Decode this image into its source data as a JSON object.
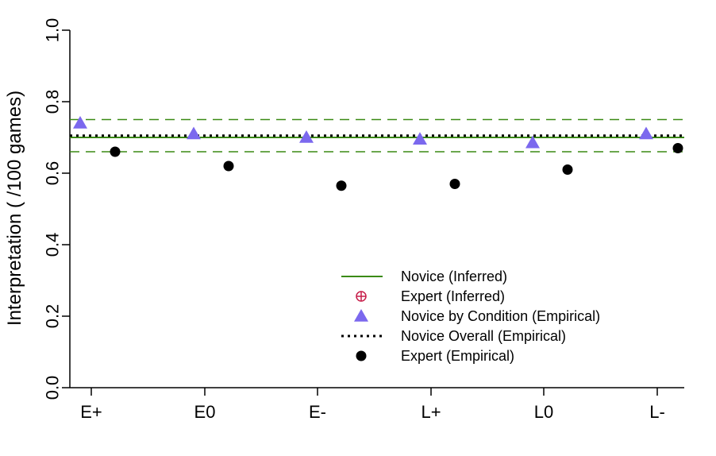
{
  "chart_data": {
    "type": "scatter",
    "ylabel": "Interpretation ( /100 games)",
    "categories": [
      "E+",
      "E0",
      "E-",
      "L+",
      "L0",
      "L-"
    ],
    "ylim": [
      0,
      1
    ],
    "yticks": [
      "0.0",
      "0.2",
      "0.4",
      "0.6",
      "0.8",
      "1.0"
    ],
    "series": [
      {
        "name": "Novice by Condition (Empirical)",
        "kind": "triangle",
        "color": "#7b68ee",
        "values": [
          0.74,
          0.71,
          0.7,
          0.695,
          0.685,
          0.71
        ]
      },
      {
        "name": "Expert (Empirical)",
        "kind": "circle",
        "color": "#000000",
        "values": [
          0.66,
          0.62,
          0.565,
          0.57,
          0.61,
          0.67
        ]
      }
    ],
    "reference_lines": {
      "novice_inferred": {
        "value": 0.7,
        "lower": 0.66,
        "upper": 0.75,
        "color": "#3a8a14"
      },
      "novice_overall": {
        "value": 0.705,
        "color": "#000000"
      }
    },
    "legend": {
      "placement": "bottom-center",
      "entries": [
        {
          "label": "Novice (Inferred)",
          "symbol": "line",
          "color": "#3a8a14"
        },
        {
          "label": "Expert (Inferred)",
          "symbol": "crossed-circle",
          "color": "#c71e4a"
        },
        {
          "label": "Novice by Condition (Empirical)",
          "symbol": "triangle",
          "color": "#7b68ee"
        },
        {
          "label": "Novice Overall (Empirical)",
          "symbol": "dotted-line",
          "color": "#000000"
        },
        {
          "label": "Expert (Empirical)",
          "symbol": "circle",
          "color": "#000000"
        }
      ]
    }
  }
}
